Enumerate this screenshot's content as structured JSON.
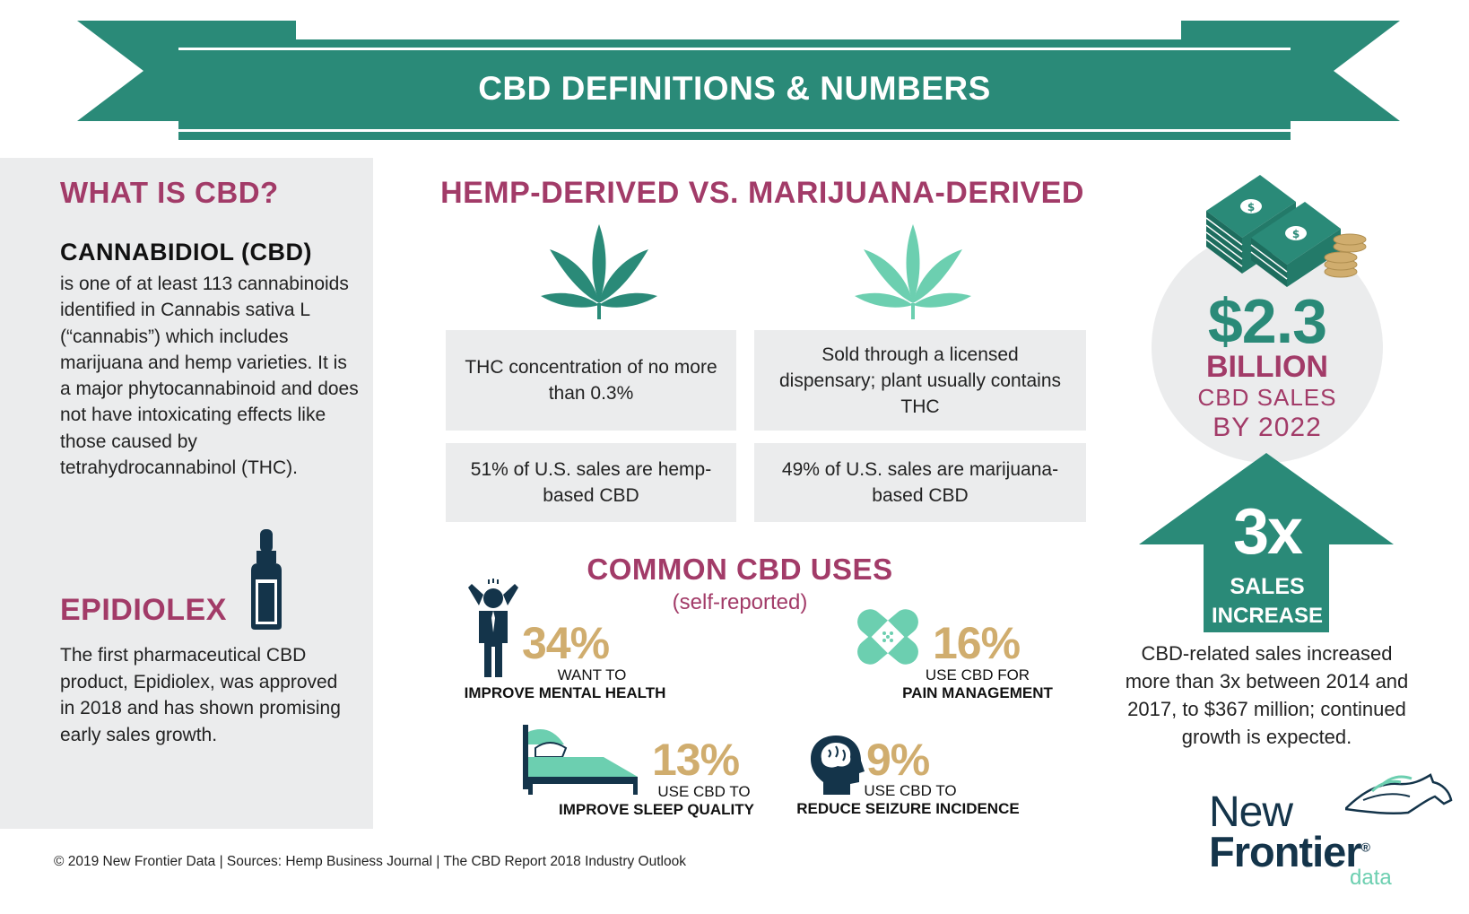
{
  "banner": {
    "title": "CBD DEFINITIONS & NUMBERS"
  },
  "what_is": {
    "title": "WHAT IS CBD?",
    "term": "CANNABIDIOL (CBD)",
    "definition": "is one of at least 113 cannabinoids identified in Cannabis sativa L (“cannabis”) which includes marijuana and hemp varieties. It is a major phytocannabinoid and does not have intoxicating effects like those caused by tetrahydrocannabinol (THC)."
  },
  "epidiolex": {
    "title": "EPIDIOLEX",
    "text": "The first pharmaceutical CBD product, Epidiolex, was approved in 2018 and has shown promising early sales growth."
  },
  "comparison": {
    "title": "HEMP-DERIVED VS. MARIJUANA-DERIVED",
    "hemp_def": "THC concentration of no more than 0.3%",
    "marijuana_def": "Sold through a licensed dispensary; plant usually contains THC",
    "hemp_share": "51% of U.S. sales are hemp-based CBD",
    "marijuana_share": "49% of U.S. sales are marijuana-based CBD"
  },
  "uses": {
    "title": "COMMON CBD USES",
    "subtitle": "(self-reported)",
    "items": [
      {
        "pct": "34%",
        "line1": "WANT TO",
        "line2": "IMPROVE MENTAL HEALTH"
      },
      {
        "pct": "16%",
        "line1": "USE CBD FOR",
        "line2": "PAIN MANAGEMENT"
      },
      {
        "pct": "13%",
        "line1": "USE CBD TO",
        "line2": "IMPROVE SLEEP QUALITY"
      },
      {
        "pct": "9%",
        "line1": "USE CBD TO",
        "line2": "REDUCE SEIZURE INCIDENCE"
      }
    ]
  },
  "sales": {
    "amount": "$2.3",
    "unit": "BILLION",
    "line1": "CBD SALES",
    "line2": "BY 2022"
  },
  "growth": {
    "big": "3x",
    "line1": "SALES",
    "line2": "INCREASE",
    "text": "CBD-related sales increased more than 3x between 2014 and 2017, to $367 million; continued growth is expected."
  },
  "logo": {
    "line1": "New",
    "line2": "Frontier",
    "mark": "®",
    "line3": "data"
  },
  "footer": "© 2019  New Frontier Data |   Sources: Hemp Business Journal  |  The CBD Report 2018 Industry Outlook",
  "colors": {
    "teal": "#2a8a78",
    "light_teal": "#6ccfb0",
    "magenta": "#a23b68",
    "gold": "#d0ad6e",
    "navy": "#14344a",
    "panel_gray": "#ebeced"
  },
  "icons": [
    "hemp-leaf-icon",
    "marijuana-leaf-icon",
    "dropper-bottle-icon",
    "stressed-man-icon",
    "bandage-icon",
    "bed-icon",
    "brain-head-icon",
    "money-stack-icon",
    "up-arrow-icon",
    "horse-logo-icon"
  ]
}
